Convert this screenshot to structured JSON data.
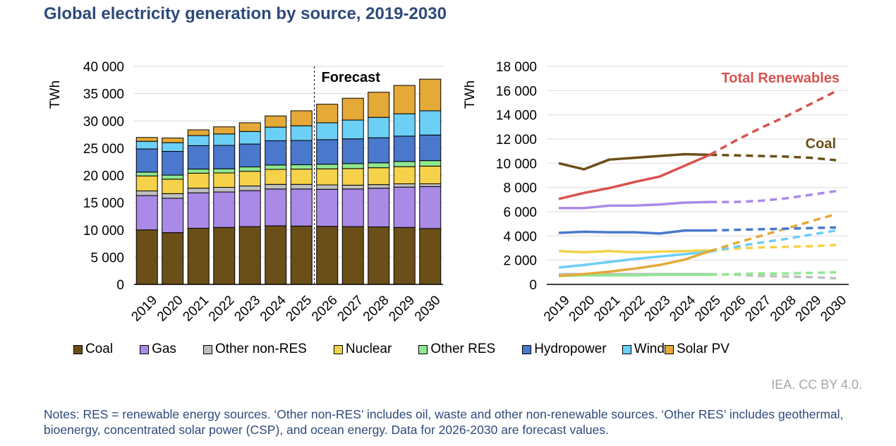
{
  "title": "Global electricity generation by source, 2019-2030",
  "credit": "IEA. CC BY 4.0.",
  "notes": "Notes: RES = renewable energy sources. ‘Other non-RES’ includes oil, waste and other non-renewable sources. ‘Other RES’ includes geothermal, bioenergy, concentrated solar power (CSP), and ocean energy. Data for 2026-2030 are forecast values.",
  "legend": [
    {
      "name": "Coal",
      "color": "#6b4f18"
    },
    {
      "name": "Gas",
      "color": "#a98ae6"
    },
    {
      "name": "Other non-RES",
      "color": "#bfbfbf"
    },
    {
      "name": "Nuclear",
      "color": "#f5d24a"
    },
    {
      "name": "Other RES",
      "color": "#8fe890"
    },
    {
      "name": "Hydropower",
      "color": "#4a78cc"
    },
    {
      "name": "Wind",
      "color": "#6ccff6"
    },
    {
      "name": "Solar PV",
      "color": "#e5a938"
    }
  ],
  "chart_data": [
    {
      "type": "bar",
      "stacked": true,
      "ylabel": "TWh",
      "ylim": [
        0,
        40000
      ],
      "yticks": [
        "0",
        "5 000",
        "10 000",
        "15 000",
        "20 000",
        "25 000",
        "30 000",
        "35 000",
        "40 000"
      ],
      "grid": true,
      "annotation": "Forecast",
      "forecast_from": "2026",
      "categories": [
        "2019",
        "2020",
        "2021",
        "2022",
        "2023",
        "2024",
        "2025",
        "2026",
        "2027",
        "2028",
        "2029",
        "2030"
      ],
      "series": [
        {
          "name": "Coal",
          "values": [
            10000,
            9500,
            10300,
            10450,
            10600,
            10750,
            10700,
            10650,
            10600,
            10550,
            10450,
            10250
          ]
        },
        {
          "name": "Gas",
          "values": [
            6300,
            6300,
            6500,
            6500,
            6600,
            6750,
            6800,
            6800,
            6900,
            7100,
            7400,
            7700
          ]
        },
        {
          "name": "Other non-RES",
          "values": [
            850,
            850,
            850,
            850,
            850,
            850,
            850,
            800,
            700,
            650,
            600,
            500
          ]
        },
        {
          "name": "Nuclear",
          "values": [
            2750,
            2650,
            2750,
            2650,
            2700,
            2750,
            2800,
            2950,
            3050,
            3100,
            3150,
            3250
          ]
        },
        {
          "name": "Other RES",
          "values": [
            700,
            750,
            750,
            750,
            800,
            800,
            800,
            850,
            900,
            900,
            950,
            1000
          ]
        },
        {
          "name": "Hydropower",
          "values": [
            4250,
            4350,
            4300,
            4300,
            4200,
            4450,
            4450,
            4500,
            4550,
            4600,
            4650,
            4700
          ]
        },
        {
          "name": "Wind",
          "values": [
            1400,
            1600,
            1850,
            2100,
            2300,
            2500,
            2700,
            3100,
            3450,
            3750,
            4100,
            4450
          ]
        },
        {
          "name": "Solar PV",
          "values": [
            700,
            850,
            1050,
            1300,
            1600,
            2050,
            2750,
            3400,
            4000,
            4600,
            5200,
            5800
          ]
        }
      ]
    },
    {
      "type": "line",
      "ylabel": "TWh",
      "ylim": [
        0,
        18000
      ],
      "yticks": [
        "0",
        "2 000",
        "4 000",
        "6 000",
        "8 000",
        "10 000",
        "12 000",
        "14 000",
        "16 000",
        "18 000"
      ],
      "grid": true,
      "forecast_dashed_from": "2025",
      "categories": [
        "2019",
        "2020",
        "2021",
        "2022",
        "2023",
        "2024",
        "2025",
        "2026",
        "2027",
        "2028",
        "2029",
        "2030"
      ],
      "series": [
        {
          "name": "Other non-RES",
          "color": "#bfbfbf",
          "values": [
            850,
            850,
            850,
            850,
            850,
            850,
            850,
            800,
            700,
            650,
            600,
            500
          ]
        },
        {
          "name": "Other RES",
          "color": "#8fe890",
          "values": [
            700,
            750,
            750,
            750,
            800,
            800,
            800,
            850,
            900,
            900,
            950,
            1000
          ]
        },
        {
          "name": "Nuclear",
          "color": "#f5d24a",
          "values": [
            2750,
            2650,
            2750,
            2650,
            2700,
            2750,
            2800,
            2950,
            3050,
            3100,
            3150,
            3250
          ]
        },
        {
          "name": "Wind",
          "color": "#6ccff6",
          "values": [
            1400,
            1600,
            1850,
            2100,
            2300,
            2500,
            2700,
            3100,
            3450,
            3750,
            4100,
            4450
          ]
        },
        {
          "name": "Solar PV",
          "color": "#e5a938",
          "values": [
            700,
            850,
            1050,
            1300,
            1600,
            2050,
            2750,
            3400,
            4000,
            4600,
            5200,
            5800
          ]
        },
        {
          "name": "Hydropower",
          "color": "#4a78cc",
          "values": [
            4250,
            4350,
            4300,
            4300,
            4200,
            4450,
            4450,
            4500,
            4550,
            4600,
            4650,
            4700
          ]
        },
        {
          "name": "Gas",
          "color": "#a98ae6",
          "values": [
            6300,
            6300,
            6500,
            6500,
            6600,
            6750,
            6800,
            6800,
            6900,
            7100,
            7400,
            7700
          ]
        },
        {
          "name": "Coal",
          "label": "Coal",
          "color": "#6b4f18",
          "values": [
            10000,
            9500,
            10300,
            10450,
            10600,
            10750,
            10700,
            10650,
            10600,
            10550,
            10450,
            10250
          ]
        },
        {
          "name": "Total Renewables",
          "label": "Total Renewables",
          "color": "#d9534f",
          "values": [
            7050,
            7550,
            7950,
            8450,
            8900,
            9800,
            10700,
            11850,
            12900,
            13850,
            14900,
            15950
          ]
        }
      ]
    }
  ]
}
